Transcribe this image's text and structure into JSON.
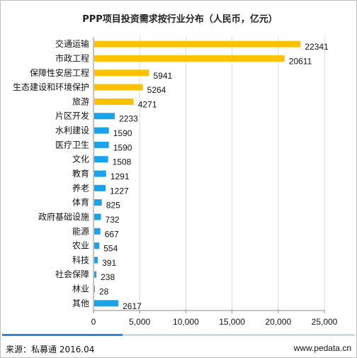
{
  "chart_data": {
    "type": "bar",
    "orientation": "horizontal",
    "title": "PPP项目投资需求按行业分布（人民币，亿元）",
    "categories": [
      "交通运输",
      "市政工程",
      "保障性安居工程",
      "生态建设和环境保护",
      "旅游",
      "片区开发",
      "水利建设",
      "医疗卫生",
      "文化",
      "教育",
      "养老",
      "体育",
      "政府基础设施",
      "能源",
      "农业",
      "科技",
      "社会保障",
      "林业",
      "其他"
    ],
    "values": [
      22341,
      20611,
      5941,
      5264,
      4271,
      2233,
      1590,
      1590,
      1508,
      1291,
      1227,
      825,
      732,
      667,
      554,
      391,
      238,
      28,
      2617
    ],
    "value_labels": [
      "22341",
      "20611",
      "5941",
      "5264",
      "4271",
      "2233",
      "1590",
      "1590",
      "1508",
      "1291",
      "1227",
      "825",
      "732",
      "667",
      "554",
      "391",
      "238",
      "28",
      "2617"
    ],
    "bar_colors": [
      "#FFC000",
      "#FFC000",
      "#FFC000",
      "#FFC000",
      "#FFC000",
      "#1AA3E8",
      "#1AA3E8",
      "#1AA3E8",
      "#1AA3E8",
      "#1AA3E8",
      "#1AA3E8",
      "#1AA3E8",
      "#1AA3E8",
      "#1AA3E8",
      "#1AA3E8",
      "#1AA3E8",
      "#1AA3E8",
      "#1AA3E8",
      "#1AA3E8"
    ],
    "x_ticks": [
      0,
      5000,
      10000,
      15000,
      20000,
      25000
    ],
    "x_tick_labels": [
      "0",
      "5,000",
      "10,000",
      "15,000",
      "20,000",
      "25,000"
    ],
    "xlim": [
      0,
      25000
    ],
    "grid": true
  },
  "footer": {
    "source": "来源：私募通 2016.04",
    "url": "www.pedata.cn"
  },
  "colors": {
    "accent": "#1AA3E8",
    "highlight": "#FFC000",
    "grid": "#d9d9d9"
  }
}
